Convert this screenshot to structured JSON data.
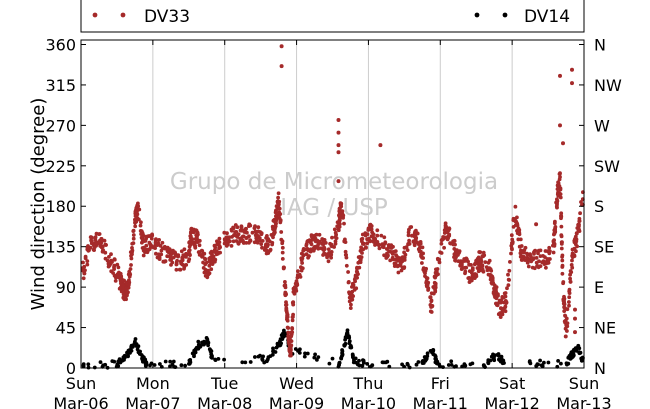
{
  "chart_data": {
    "type": "scatter",
    "ylabel": "Wind direction (degree)",
    "ylim": [
      0,
      365
    ],
    "y_ticks": [
      0,
      45,
      90,
      135,
      180,
      225,
      270,
      315,
      360
    ],
    "y_tick_labels": [
      "0",
      "45",
      "90",
      "135",
      "180",
      "225",
      "270",
      "315",
      "360"
    ],
    "right_axis_labels": [
      "N",
      "NE",
      "E",
      "SE",
      "S",
      "SW",
      "W",
      "NW",
      "N"
    ],
    "xlim": [
      "2011-03-06",
      "2011-03-13"
    ],
    "x_ticks": [
      {
        "day": "Sun",
        "date": "Mar-06"
      },
      {
        "day": "Mon",
        "date": "Mar-07"
      },
      {
        "day": "Tue",
        "date": "Mar-08"
      },
      {
        "day": "Wed",
        "date": "Mar-09"
      },
      {
        "day": "Thu",
        "date": "Mar-10"
      },
      {
        "day": "Fri",
        "date": "Mar-11"
      },
      {
        "day": "Sat",
        "date": "Mar-12"
      },
      {
        "day": "Sun",
        "date": "Mar-13"
      }
    ],
    "grid": "vertical",
    "legend_placement": "top",
    "watermark": [
      "Grupo de Micrometeorologia",
      "IAG / USP"
    ],
    "series": [
      {
        "name": "DV33",
        "color": "#a52a2a",
        "points": [
          [
            "2011-03-06 00:00",
            100
          ],
          [
            "2011-03-06 03:00",
            135
          ],
          [
            "2011-03-06 06:00",
            140
          ],
          [
            "2011-03-06 09:00",
            125
          ],
          [
            "2011-03-06 12:00",
            105
          ],
          [
            "2011-03-06 14:00",
            90
          ],
          [
            "2011-03-06 15:00",
            82
          ],
          [
            "2011-03-06 16:00",
            100
          ],
          [
            "2011-03-06 18:00",
            160
          ],
          [
            "2011-03-06 19:00",
            178
          ],
          [
            "2011-03-06 21:00",
            135
          ],
          [
            "2011-03-07 00:00",
            138
          ],
          [
            "2011-03-07 03:00",
            130
          ],
          [
            "2011-03-07 06:00",
            122
          ],
          [
            "2011-03-07 09:00",
            118
          ],
          [
            "2011-03-07 12:00",
            125
          ],
          [
            "2011-03-07 13:00",
            150
          ],
          [
            "2011-03-07 15:00",
            140
          ],
          [
            "2011-03-07 18:00",
            108
          ],
          [
            "2011-03-07 20:00",
            125
          ],
          [
            "2011-03-07 23:00",
            140
          ],
          [
            "2011-03-08 03:00",
            148
          ],
          [
            "2011-03-08 06:00",
            150
          ],
          [
            "2011-03-08 09:00",
            150
          ],
          [
            "2011-03-08 12:00",
            145
          ],
          [
            "2011-03-08 15:00",
            135
          ],
          [
            "2011-03-08 17:00",
            165
          ],
          [
            "2011-03-08 18:00",
            190
          ],
          [
            "2011-03-08 20:00",
            100
          ],
          [
            "2011-03-08 21:00",
            50
          ],
          [
            "2011-03-08 22:00",
            15
          ],
          [
            "2011-03-08 23:00",
            80
          ],
          [
            "2011-03-09 02:00",
            120
          ],
          [
            "2011-03-09 05:00",
            138
          ],
          [
            "2011-03-09 08:00",
            140
          ],
          [
            "2011-03-09 11:00",
            125
          ],
          [
            "2011-03-09 14:00",
            160
          ],
          [
            "2011-03-09 15:00",
            180
          ],
          [
            "2011-03-09 18:00",
            75
          ],
          [
            "2011-03-09 20:00",
            100
          ],
          [
            "2011-03-09 22:00",
            140
          ],
          [
            "2011-03-10 01:00",
            150
          ],
          [
            "2011-03-10 04:00",
            140
          ],
          [
            "2011-03-10 08:00",
            125
          ],
          [
            "2011-03-10 11:00",
            110
          ],
          [
            "2011-03-10 14:00",
            150
          ],
          [
            "2011-03-10 17:00",
            140
          ],
          [
            "2011-03-10 19:00",
            110
          ],
          [
            "2011-03-10 21:00",
            70
          ],
          [
            "2011-03-10 23:00",
            110
          ],
          [
            "2011-03-11 02:00",
            155
          ],
          [
            "2011-03-11 05:00",
            130
          ],
          [
            "2011-03-11 08:00",
            115
          ],
          [
            "2011-03-11 11:00",
            100
          ],
          [
            "2011-03-11 13:00",
            120
          ],
          [
            "2011-03-11 16:00",
            115
          ],
          [
            "2011-03-11 18:00",
            90
          ],
          [
            "2011-03-11 20:00",
            65
          ],
          [
            "2011-03-11 22:00",
            75
          ],
          [
            "2011-03-12 01:00",
            175
          ],
          [
            "2011-03-12 03:00",
            130
          ],
          [
            "2011-03-12 07:00",
            120
          ],
          [
            "2011-03-12 11:00",
            120
          ],
          [
            "2011-03-12 14:00",
            140
          ],
          [
            "2011-03-12 15:00",
            190
          ],
          [
            "2011-03-12 16:00",
            210
          ],
          [
            "2011-03-12 17:00",
            90
          ],
          [
            "2011-03-12 18:00",
            40
          ],
          [
            "2011-03-12 20:00",
            120
          ],
          [
            "2011-03-12 22:00",
            150
          ],
          [
            "2011-03-13 00:00",
            200
          ]
        ],
        "outliers": [
          [
            "2011-03-06 18:30",
            178
          ],
          [
            "2011-03-08 19:00",
            358
          ],
          [
            "2011-03-08 19:00",
            336
          ],
          [
            "2011-03-09 14:00",
            276
          ],
          [
            "2011-03-09 14:00",
            262
          ],
          [
            "2011-03-09 14:00",
            248
          ],
          [
            "2011-03-09 14:00",
            240
          ],
          [
            "2011-03-09 14:00",
            208
          ],
          [
            "2011-03-10 04:00",
            248
          ],
          [
            "2011-03-12 08:00",
            160
          ],
          [
            "2011-03-12 16:00",
            325
          ],
          [
            "2011-03-12 16:00",
            270
          ],
          [
            "2011-03-12 17:00",
            250
          ],
          [
            "2011-03-12 20:00",
            332
          ],
          [
            "2011-03-12 20:00",
            317
          ],
          [
            "2011-03-12 21:00",
            65
          ],
          [
            "2011-03-12 21:00",
            55
          ],
          [
            "2011-03-12 21:00",
            40
          ]
        ]
      },
      {
        "name": "DV14",
        "color": "#000000",
        "points": [
          [
            "2011-03-06 00:00",
            0
          ],
          [
            "2011-03-06 12:00",
            5
          ],
          [
            "2011-03-06 15:00",
            12
          ],
          [
            "2011-03-06 18:00",
            30
          ],
          [
            "2011-03-06 20:00",
            15
          ],
          [
            "2011-03-06 22:00",
            2
          ],
          [
            "2011-03-07 12:00",
            5
          ],
          [
            "2011-03-07 15:00",
            25
          ],
          [
            "2011-03-07 18:00",
            32
          ],
          [
            "2011-03-07 20:00",
            10
          ],
          [
            "2011-03-08 14:00",
            10
          ],
          [
            "2011-03-08 18:00",
            25
          ],
          [
            "2011-03-08 20:00",
            40
          ],
          [
            "2011-03-08 22:00",
            20
          ],
          [
            "2011-03-09 14:00",
            5
          ],
          [
            "2011-03-09 16:00",
            25
          ],
          [
            "2011-03-09 17:00",
            40
          ],
          [
            "2011-03-09 19:00",
            10
          ],
          [
            "2011-03-10 00:00",
            2
          ],
          [
            "2011-03-10 18:00",
            5
          ],
          [
            "2011-03-10 21:00",
            22
          ],
          [
            "2011-03-10 23:00",
            5
          ],
          [
            "2011-03-11 14:00",
            2
          ],
          [
            "2011-03-11 19:00",
            15
          ],
          [
            "2011-03-11 22:00",
            5
          ],
          [
            "2011-03-12 18:00",
            5
          ],
          [
            "2011-03-12 20:00",
            15
          ],
          [
            "2011-03-12 22:00",
            22
          ],
          [
            "2011-03-13 00:00",
            5
          ]
        ]
      }
    ]
  }
}
